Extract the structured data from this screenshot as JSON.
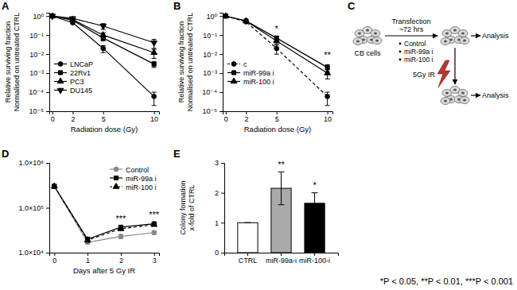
{
  "chart_data": [
    {
      "title": "A",
      "type": "line",
      "x": [
        0,
        2,
        5,
        10
      ],
      "xlim": [
        -0.3,
        10.5
      ],
      "xticks": [
        0,
        2,
        5,
        10
      ],
      "ylim": [
        1e-05,
        1.5
      ],
      "log": "y",
      "yticks": [
        {
          "value": 1,
          "label": "10⁰"
        },
        {
          "value": 0.1,
          "label": "10⁻¹"
        },
        {
          "value": 0.01,
          "label": "10⁻²"
        },
        {
          "value": 0.001,
          "label": "10⁻³"
        },
        {
          "value": 0.0001,
          "label": "10⁻⁴"
        },
        {
          "value": 1e-05,
          "label": "10⁻⁵"
        }
      ],
      "x_label": "Radiation dose (Gy)",
      "y_label": [
        "Relative surviving fraction",
        "Normalised on untreated CTRL"
      ],
      "legend": "left",
      "series": [
        {
          "name": "LNCaP",
          "color": "#000000",
          "marker": "circle",
          "line_style": "solid",
          "values": [
            1,
            0.45,
            0.02,
            6e-05
          ],
          "errors": [
            0,
            0.05,
            0.008,
            4e-05
          ]
        },
        {
          "name": "22Rv1",
          "color": "#000000",
          "marker": "square",
          "line_style": "solid",
          "values": [
            1,
            0.6,
            0.07,
            0.003
          ],
          "errors": [
            0,
            0.05,
            0.02,
            0.001
          ]
        },
        {
          "name": "PC3",
          "color": "#000000",
          "marker": "triangle",
          "line_style": "solid",
          "values": [
            1,
            0.65,
            0.1,
            0.012
          ],
          "errors": [
            0,
            0.05,
            0.03,
            0.006
          ]
        },
        {
          "name": "DU145",
          "color": "#000000",
          "marker": "triangle-down",
          "line_style": "solid",
          "values": [
            1,
            0.75,
            0.3,
            0.04
          ],
          "errors": [
            0,
            0.05,
            0.1,
            0.02
          ]
        }
      ]
    },
    {
      "title": "B",
      "type": "line",
      "x": [
        0,
        2,
        5,
        10
      ],
      "xlim": [
        -0.3,
        10.5
      ],
      "xticks": [
        0,
        2,
        5,
        10
      ],
      "ylim": [
        1e-05,
        1.5
      ],
      "log": "y",
      "yticks": [
        {
          "value": 1,
          "label": "10⁰"
        },
        {
          "value": 0.1,
          "label": "10⁻¹"
        },
        {
          "value": 0.01,
          "label": "10⁻²"
        },
        {
          "value": 0.001,
          "label": "10⁻³"
        },
        {
          "value": 0.0001,
          "label": "10⁻⁴"
        },
        {
          "value": 1e-05,
          "label": "10⁻⁵"
        }
      ],
      "x_label": "Radiation dose (Gy)",
      "y_label": [
        "Relative surviving fraction",
        "Normalised on untreated CTRL"
      ],
      "legend": "left",
      "series": [
        {
          "name": "c",
          "color": "#000000",
          "marker": "circle",
          "line_style": "dashed",
          "values": [
            1,
            0.5,
            0.02,
            6e-05
          ],
          "errors": [
            0,
            0.05,
            0.01,
            4e-05
          ]
        },
        {
          "name": "miR-99a i",
          "color": "#000000",
          "marker": "square",
          "line_style": "solid",
          "values": [
            1,
            0.55,
            0.07,
            0.002
          ],
          "errors": [
            0,
            0.05,
            0.02,
            0.0008
          ]
        },
        {
          "name": "miR-100 i",
          "color": "#000000",
          "marker": "triangle",
          "line_style": "solid",
          "values": [
            1,
            0.55,
            0.05,
            0.001
          ],
          "errors": [
            0,
            0.05,
            0.015,
            0.0005
          ]
        }
      ],
      "annotations": [
        {
          "text": "*",
          "x": 5,
          "y": 0.15
        },
        {
          "text": "**",
          "x": 10,
          "y": 0.006
        }
      ]
    },
    {
      "title": "D",
      "type": "line",
      "x": [
        0,
        1,
        2,
        3
      ],
      "xlim": [
        -0.15,
        3.15
      ],
      "xticks": [
        0,
        1,
        2,
        3
      ],
      "ylim": [
        10000,
        1000000
      ],
      "log": "y",
      "yticks": [
        {
          "value": 10000,
          "label": "1.0×10⁴"
        },
        {
          "value": 100000,
          "label": "1.0×10⁵"
        },
        {
          "value": 1000000,
          "label": "1.0×10⁶"
        }
      ],
      "x_label": "Days after 5 Gy IR",
      "legend": "top-right",
      "series": [
        {
          "name": "Control",
          "color": "#888888",
          "marker": "circle",
          "line_style": "solid",
          "values": [
            300000,
            17000,
            23000,
            28000
          ],
          "errors": [
            30000,
            1500,
            2500,
            2500
          ]
        },
        {
          "name": "miR-99a i",
          "color": "#000000",
          "marker": "square",
          "line_style": "solid",
          "values": [
            300000,
            20000,
            37000,
            44000
          ],
          "errors": [
            30000,
            2000,
            3000,
            3000
          ]
        },
        {
          "name": "miR-100 i",
          "color": "#000000",
          "marker": "triangle",
          "line_style": "dashed",
          "values": [
            300000,
            19000,
            34000,
            42000
          ],
          "errors": [
            30000,
            2000,
            3000,
            3000
          ]
        }
      ],
      "annotations": [
        {
          "text": "***",
          "x": 2,
          "y": 50000
        },
        {
          "text": "***",
          "x": 3,
          "y": 60000
        }
      ]
    },
    {
      "title": "E",
      "type": "bar",
      "categories": [
        "CTRL",
        "miR-99a-i",
        "miR-100-i"
      ],
      "values": [
        1,
        2.15,
        1.65
      ],
      "errors": [
        0,
        0.55,
        0.35
      ],
      "colors": [
        "#ffffff",
        "#aaaaaa",
        "#000000"
      ],
      "ylim": [
        0,
        3
      ],
      "yticks": [
        0,
        1,
        2,
        3
      ],
      "y_label": [
        "Colony formation",
        "x-fold of CTRL"
      ],
      "annotations": [
        {
          "text": "**",
          "x": "miR-99a-i",
          "y": 2.85
        },
        {
          "text": "*",
          "x": "miR-100-i",
          "y": 2.15
        }
      ]
    }
  ],
  "diagram": {
    "title": "C",
    "cells": "CB cells",
    "step": "Transfection",
    "duration": "~72 hrs",
    "conditions": [
      "Control",
      "miR-99a i",
      "miR-100 i"
    ],
    "readout": "Analysis",
    "treatment": "5Gy IR",
    "readout_after_treatment": "Analysis"
  },
  "footnote": "*P < 0.05, **P < 0.01, ***P < 0.001"
}
